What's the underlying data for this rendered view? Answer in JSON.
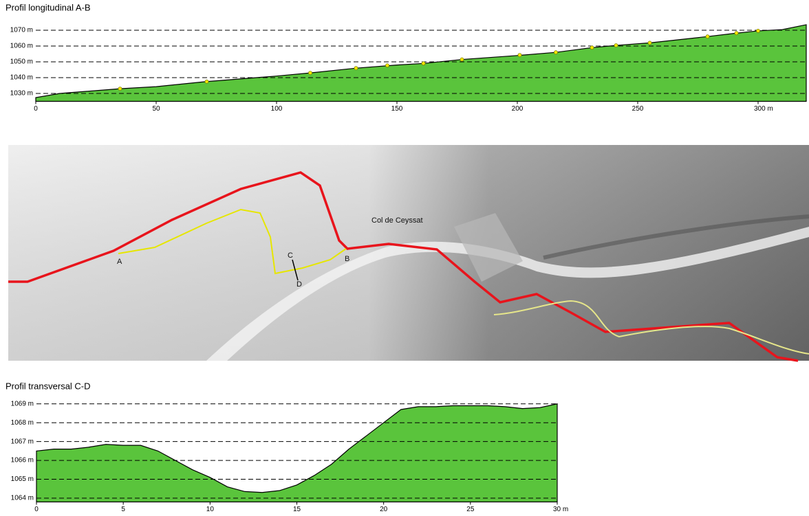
{
  "chart_data": [
    {
      "type": "area",
      "title": "Profil longitudinal A-B",
      "color": "#5ac43c",
      "x": [
        0,
        10,
        35,
        50,
        70,
        100,
        114,
        133,
        150,
        161,
        177,
        200,
        216,
        231,
        241,
        255,
        279,
        290,
        300,
        310,
        320
      ],
      "values": [
        1027.4,
        1030,
        1033,
        1034.3,
        1037.4,
        1041,
        1043,
        1046,
        1048,
        1049,
        1051.5,
        1054,
        1056,
        1059,
        1060.4,
        1062,
        1066,
        1068,
        1069.6,
        1070.4,
        1073.5
      ],
      "points": {
        "color": "#f2e600",
        "x": [
          35,
          71,
          114,
          133,
          146,
          161,
          177,
          201,
          216,
          231,
          241,
          255,
          279,
          291,
          300
        ],
        "values": [
          1033,
          1037.5,
          1043,
          1046,
          1047.7,
          1049,
          1051.5,
          1054.3,
          1056,
          1059,
          1060.4,
          1062,
          1066,
          1068.2,
          1069.6
        ]
      },
      "xlim": [
        0,
        320
      ],
      "ylim": [
        1025,
        1075
      ],
      "xticks": [
        0,
        50,
        100,
        150,
        200,
        250,
        {
          "value": 300,
          "label": "300  m"
        }
      ],
      "yticks": [
        {
          "value": 1030,
          "label": "1030 m"
        },
        {
          "value": 1040,
          "label": "1040 m"
        },
        {
          "value": 1050,
          "label": "1050 m"
        },
        {
          "value": 1060,
          "label": "1060 m"
        },
        {
          "value": 1070,
          "label": "1070 m"
        }
      ],
      "grid": true
    },
    {
      "type": "area",
      "title": "Profil transversal C-D",
      "color": "#5ac43c",
      "x": [
        0,
        1,
        2,
        3,
        4,
        5,
        6,
        7,
        8,
        9,
        10,
        11,
        12,
        13,
        14,
        15,
        16,
        17,
        18,
        19,
        20,
        21,
        22,
        23,
        24,
        25,
        26,
        27,
        28,
        29,
        30
      ],
      "values": [
        1066.5,
        1066.6,
        1066.6,
        1066.7,
        1066.85,
        1066.8,
        1066.8,
        1066.5,
        1066.0,
        1065.5,
        1065.1,
        1064.6,
        1064.35,
        1064.3,
        1064.4,
        1064.7,
        1065.2,
        1065.8,
        1066.6,
        1067.3,
        1068.0,
        1068.7,
        1068.85,
        1068.85,
        1068.9,
        1068.9,
        1068.9,
        1068.85,
        1068.75,
        1068.8,
        1069.0
      ],
      "xlim": [
        0,
        30
      ],
      "ylim": [
        1063.8,
        1069.1
      ],
      "xticks": [
        0,
        5,
        10,
        15,
        20,
        25,
        {
          "value": 30,
          "label": "30 m"
        }
      ],
      "yticks": [
        {
          "value": 1064,
          "label": "1064 m"
        },
        {
          "value": 1065,
          "label": "1065 m"
        },
        {
          "value": 1066,
          "label": "1066 m"
        },
        {
          "value": 1067,
          "label": "1067 m"
        },
        {
          "value": 1068,
          "label": "1068 m"
        },
        {
          "value": 1069,
          "label": "1069 m"
        }
      ],
      "grid": true
    }
  ],
  "map": {
    "place": "Col de Ceyssat",
    "points": [
      "A",
      "B",
      "C",
      "D"
    ]
  }
}
